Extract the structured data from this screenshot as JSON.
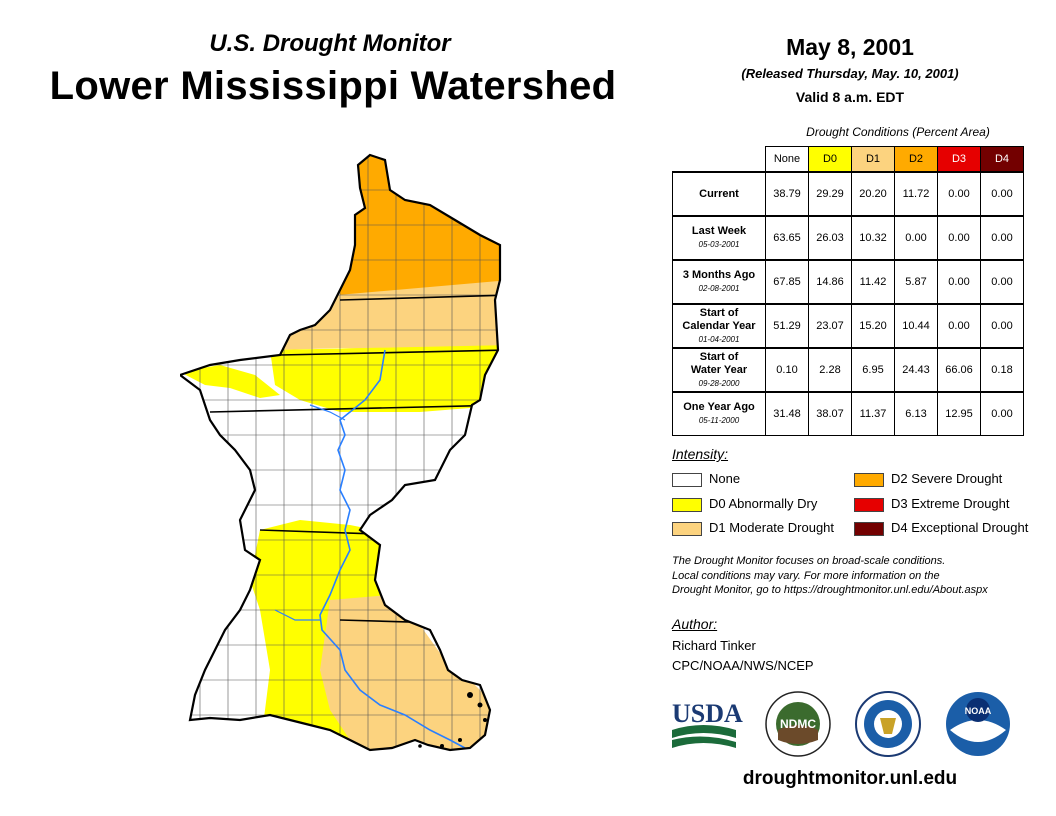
{
  "header": {
    "subtitle": "U.S. Drought Monitor",
    "title": "Lower Mississippi Watershed",
    "date": "May 8, 2001",
    "released": "(Released Thursday, May. 10, 2001)",
    "valid": "Valid 8 a.m. EDT"
  },
  "table": {
    "caption": "Drought Conditions (Percent Area)",
    "columns": [
      "None",
      "D0",
      "D1",
      "D2",
      "D3",
      "D4"
    ],
    "column_colors": [
      "#ffffff",
      "#ffff00",
      "#fcd37f",
      "#ffaa00",
      "#e60000",
      "#730000"
    ],
    "rows": [
      {
        "label": "Current",
        "label2": "",
        "date": "",
        "values": [
          "38.79",
          "29.29",
          "20.20",
          "11.72",
          "0.00",
          "0.00"
        ]
      },
      {
        "label": "Last Week",
        "label2": "",
        "date": "05-03-2001",
        "values": [
          "63.65",
          "26.03",
          "10.32",
          "0.00",
          "0.00",
          "0.00"
        ]
      },
      {
        "label": "3 Months Ago",
        "label2": "",
        "date": "02-08-2001",
        "values": [
          "67.85",
          "14.86",
          "11.42",
          "5.87",
          "0.00",
          "0.00"
        ]
      },
      {
        "label": "Start of",
        "label2": "Calendar Year",
        "date": "01-04-2001",
        "values": [
          "51.29",
          "23.07",
          "15.20",
          "10.44",
          "0.00",
          "0.00"
        ]
      },
      {
        "label": "Start of",
        "label2": "Water Year",
        "date": "09-28-2000",
        "values": [
          "0.10",
          "2.28",
          "6.95",
          "24.43",
          "66.06",
          "0.18"
        ]
      },
      {
        "label": "One Year Ago",
        "label2": "",
        "date": "05-11-2000",
        "values": [
          "31.48",
          "38.07",
          "11.37",
          "6.13",
          "12.95",
          "0.00"
        ]
      }
    ]
  },
  "legend": {
    "title": "Intensity:",
    "items": [
      {
        "label": "None",
        "color": "#ffffff"
      },
      {
        "label": "D0 Abnormally Dry",
        "color": "#ffff00"
      },
      {
        "label": "D1 Moderate Drought",
        "color": "#fcd37f"
      },
      {
        "label": "D2 Severe Drought",
        "color": "#ffaa00"
      },
      {
        "label": "D3 Extreme Drought",
        "color": "#e60000"
      },
      {
        "label": "D4 Exceptional Drought",
        "color": "#730000"
      }
    ]
  },
  "note": {
    "line1": "The Drought Monitor focuses on broad-scale conditions.",
    "line2": "Local conditions may vary. For more information on the",
    "line3": "Drought Monitor, go to https://droughtmonitor.unl.edu/About.aspx"
  },
  "author": {
    "label": "Author:",
    "name": "Richard Tinker",
    "org": "CPC/NOAA/NWS/NCEP"
  },
  "logos": {
    "usda": "USDA",
    "ndmc": "NDMC",
    "noaa": "NOAA"
  },
  "footer": {
    "url": "droughtmonitor.unl.edu"
  },
  "map_colors": {
    "d0": "#ffff00",
    "d1": "#fcd37f",
    "d2": "#ffaa00",
    "river": "#2a7fff",
    "outline": "#000000"
  }
}
